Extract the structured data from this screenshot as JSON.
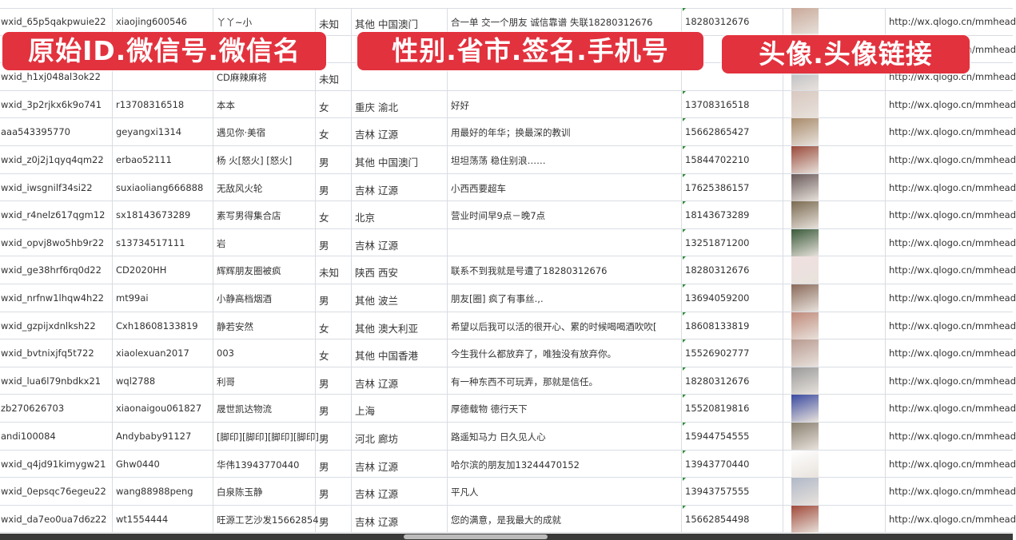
{
  "overlay_labels": [
    "原始ID.微信号.微信名",
    "性别.省市.签名.手机号",
    "头像.头像链接"
  ],
  "rows": [
    {
      "id": "wxid_65p5qakpwuie22",
      "wechat": "xiaojing600546",
      "name": "丫丫~小",
      "gender": "未知",
      "region": "其他 中国澳门",
      "signature": "合一单 交一个朋友 诚信靠谱 失联18280312676",
      "phone": "18280312676",
      "avatar_color": "#c9a99a",
      "url": "http://wx.qlogo.cn/mmhead"
    },
    {
      "id": "",
      "wechat": "",
      "name": "",
      "gender": "",
      "region": "",
      "signature": "",
      "phone": "",
      "avatar_color": "#8a92b8",
      "url": "http://wx.qlogo.cn/mmhead"
    },
    {
      "id": "wxid_h1xj048al3ok22",
      "wechat": "",
      "name": "CD麻辣麻将",
      "gender": "未知",
      "region": "",
      "signature": "",
      "phone": "",
      "avatar_color": "#b0b4bc",
      "url": "http://wx.qlogo.cn/mmhead"
    },
    {
      "id": "wxid_3p2rjkx6k9o741",
      "wechat": "r13708316518",
      "name": "本本",
      "gender": "女",
      "region": "重庆 渝北",
      "signature": "好好",
      "phone": "13708316518",
      "avatar_color": "#d8c8c0",
      "url": "http://wx.qlogo.cn/mmhead"
    },
    {
      "id": "aaa543395770",
      "wechat": "geyangxi1314",
      "name": "遇见你·美宿",
      "gender": "女",
      "region": "吉林 辽源",
      "signature": "用最好的年华；换最深的教训",
      "phone": "15662865427",
      "avatar_color": "#a88a6a",
      "url": "http://wx.qlogo.cn/mmhead"
    },
    {
      "id": "wxid_z0j2j1qyq4qm22",
      "wechat": "erbao52111",
      "name": "杨 火[怒火] [怒火]",
      "gender": "男",
      "region": "其他 中国澳门",
      "signature": "坦坦荡荡 稳住别浪……",
      "phone": "15844702210",
      "avatar_color": "#9a4a3a",
      "url": "http://wx.qlogo.cn/mmhead"
    },
    {
      "id": "wxid_iwsgnilf34si22",
      "wechat": "suxiaoliang666888",
      "name": "无敌风火轮",
      "gender": "男",
      "region": "吉林 辽源",
      "signature": "小西西要超车",
      "phone": "17625386157",
      "avatar_color": "#6a5a5a",
      "url": "http://wx.qlogo.cn/mmhead"
    },
    {
      "id": "wxid_r4nelz617qgm12",
      "wechat": "sx18143673289",
      "name": "素写男得集合店",
      "gender": "女",
      "region": "北京",
      "signature": "营业时间早9点－晚7点",
      "phone": "18143673289",
      "avatar_color": "#7a6a50",
      "url": "http://wx.qlogo.cn/mmhead"
    },
    {
      "id": "wxid_opvj8wo5hb9r22",
      "wechat": "s13734517111",
      "name": "岩",
      "gender": "男",
      "region": "吉林 辽源",
      "signature": "",
      "phone": "13251871200",
      "avatar_color": "#3a5a3a",
      "url": "http://wx.qlogo.cn/mmhead"
    },
    {
      "id": "wxid_ge38hrf6rq0d22",
      "wechat": "CD2020HH",
      "name": "辉辉朋友圈被疯",
      "gender": "未知",
      "region": "陕西 西安",
      "signature": "联系不到我就是号遭了18280312676",
      "phone": "18280312676",
      "avatar_color": "#f0e0e0",
      "url": "http://wx.qlogo.cn/mmhead"
    },
    {
      "id": "wxid_nrfnw1lhqw4h22",
      "wechat": "mt99ai",
      "name": "小静高档烟酒",
      "gender": "男",
      "region": "其他 波兰",
      "signature": "朋友[圈] 疯了有事丝.,.",
      "phone": "13694059200",
      "avatar_color": "#8a6a5a",
      "url": "http://wx.qlogo.cn/mmhead"
    },
    {
      "id": "wxid_gzpijxdnlksh22",
      "wechat": "Cxh18608133819",
      "name": "静若安然",
      "gender": "女",
      "region": "其他 澳大利亚",
      "signature": "希望以后我可以活的很开心、累的时候喝喝酒吹吹[",
      "phone": "18608133819",
      "avatar_color": "#c08a7a",
      "url": "http://wx.qlogo.cn/mmhead"
    },
    {
      "id": "wxid_bvtnixjfq5t722",
      "wechat": "xiaolexuan2017",
      "name": "003",
      "gender": "女",
      "region": "其他 中国香港",
      "signature": "今生我什么都放弃了，唯独没有放弃你。",
      "phone": "15526902777",
      "avatar_color": "#b89a90",
      "url": "http://wx.qlogo.cn/mmhead"
    },
    {
      "id": "wxid_lua6l79nbdkx21",
      "wechat": "wql2788",
      "name": "利哥",
      "gender": "男",
      "region": "吉林 辽源",
      "signature": "有一种东西不可玩弄，那就是信任。",
      "phone": "18280312676",
      "avatar_color": "#9a9a9a",
      "url": "http://wx.qlogo.cn/mmhead"
    },
    {
      "id": "zb270626703",
      "wechat": "xiaonaigou061827",
      "name": "晟世凯达物流",
      "gender": "男",
      "region": "上海",
      "signature": "厚德载物 德行天下",
      "phone": "15520819816",
      "avatar_color": "#3a4aa0",
      "url": "http://wx.qlogo.cn/mmhead"
    },
    {
      "id": "andi100084",
      "wechat": "Andybaby91127",
      "name": "[脚印][脚印][脚印][脚印]",
      "gender": "男",
      "region": "河北 廊坊",
      "signature": "路遥知马力 日久见人心",
      "phone": "15944754555",
      "avatar_color": "#8a8070",
      "url": "http://wx.qlogo.cn/mmhead"
    },
    {
      "id": "wxid_q4jd91kimygw21",
      "wechat": "Ghw0440",
      "name": "华伟13943770440",
      "gender": "男",
      "region": "吉林 辽源",
      "signature": "哈尔滨的朋友加13244470152",
      "phone": "13943770440",
      "avatar_color": "#ffffff",
      "url": "http://wx.qlogo.cn/mmhead"
    },
    {
      "id": "wxid_0epsqc76egeu22",
      "wechat": "wang88988peng",
      "name": "白泉陈玉静",
      "gender": "男",
      "region": "吉林 辽源",
      "signature": "平凡人",
      "phone": "13943757555",
      "avatar_color": "#b0b8c8",
      "url": "http://wx.qlogo.cn/mmhead"
    },
    {
      "id": "wxid_da7eo0ua7d6z22",
      "wechat": "wt1554444",
      "name": "旺源工艺沙发15662854",
      "gender": "男",
      "region": "吉林 辽源",
      "signature": "您的满意，是我最大的成就",
      "phone": "15662854498",
      "avatar_color": "#a04a3a",
      "url": "http://wx.qlogo.cn/mmhead"
    }
  ]
}
